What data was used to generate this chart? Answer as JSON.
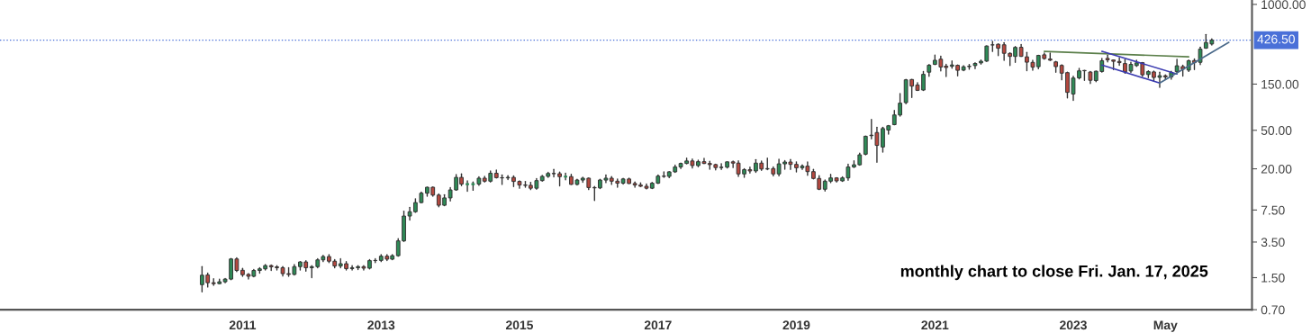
{
  "chart_data": {
    "type": "candlestick",
    "log": true,
    "grid": false,
    "legend": false,
    "xlim": [
      "2007-07",
      "2025-08"
    ],
    "ylim": [
      0.7,
      1110
    ],
    "xticks": [
      {
        "value": "2011-01",
        "label": "2011"
      },
      {
        "value": "2013-01",
        "label": "2013"
      },
      {
        "value": "2015-01",
        "label": "2015"
      },
      {
        "value": "2017-01",
        "label": "2017"
      },
      {
        "value": "2019-01",
        "label": "2019"
      },
      {
        "value": "2021-01",
        "label": "2021"
      },
      {
        "value": "2023-01",
        "label": "2023"
      },
      {
        "value": "2024-05",
        "label": "May"
      }
    ],
    "yticks": [
      {
        "value": 0.7,
        "label": "0.70"
      },
      {
        "value": 1.5,
        "label": "1.50"
      },
      {
        "value": 3.5,
        "label": "3.50"
      },
      {
        "value": 7.5,
        "label": "7.50"
      },
      {
        "value": 20,
        "label": "20.00"
      },
      {
        "value": 50,
        "label": "50.00"
      },
      {
        "value": 150,
        "label": "150.00"
      },
      {
        "value": 1000,
        "label": "1000.00"
      }
    ],
    "colors": [
      "#2e8b57",
      "#b5483f",
      "#b5483f",
      "#2e8b57",
      "#2e8b57",
      "#2e8b57",
      "#b5483f",
      "#b5483f",
      "#b5483f",
      "#2e8b57",
      "#2e8b57",
      "#2e8b57",
      "#b5483f",
      "#b5483f",
      "#b5483f",
      "#b5483f",
      "#2e8b57",
      "#2e8b57",
      "#b5483f",
      "#2e8b57",
      "#2e8b57",
      "#2e8b57",
      "#b5483f",
      "#b5483f",
      "#2e8b57",
      "#b5483f",
      "#2e8b57",
      "#2e8b57",
      "#b5483f",
      "#2e8b57",
      "#2e8b57",
      "#2e8b57",
      "#b5483f",
      "#2e8b57",
      "#2e8b57",
      "#2e8b57",
      "#2e8b57",
      "#2e8b57",
      "#2e8b57",
      "#2e8b57",
      "#b5483f",
      "#b5483f",
      "#2e8b57",
      "#2e8b57",
      "#2e8b57",
      "#b5483f",
      "#2e8b57",
      "#2e8b57",
      "#2e8b57",
      "#b5483f",
      "#2e8b57",
      "#b5483f",
      "#b5483f",
      "#2e8b57",
      "#b5483f",
      "#b5483f",
      "#b5483f",
      "#b5483f",
      "#2e8b57",
      "#2e8b57",
      "#2e8b57",
      "#b5483f",
      "#b5483f",
      "#2e8b57",
      "#b5483f",
      "#2e8b57",
      "#2e8b57",
      "#b5483f",
      "#b5483f",
      "#2e8b57",
      "#2e8b57",
      "#b5483f",
      "#b5483f",
      "#2e8b57",
      "#b5483f",
      "#b5483f",
      "#b5483f",
      "#b5483f",
      "#2e8b57",
      "#2e8b57",
      "#b5483f",
      "#2e8b57",
      "#2e8b57",
      "#2e8b57",
      "#2e8b57",
      "#b5483f",
      "#2e8b57",
      "#b5483f",
      "#b5483f",
      "#b5483f",
      "#2e8b57",
      "#2e8b57",
      "#b5483f",
      "#b5483f",
      "#2e8b57",
      "#b5483f",
      "#2e8b57",
      "#b5483f",
      "#2e8b57",
      "#b5483f",
      "#2e8b57",
      "#2e8b57",
      "#b5483f",
      "#b5483f",
      "#2e8b57",
      "#b5483f",
      "#b5483f",
      "#b5483f",
      "#2e8b57",
      "#2e8b57",
      "#b5483f",
      "#2e8b57",
      "#2e8b57",
      "#2e8b57",
      "#2e8b57",
      "#2e8b57",
      "#2e8b57",
      "#b5483f",
      "#2e8b57",
      "#2e8b57",
      "#2e8b57",
      "#2e8b57",
      "#2e8b57",
      "#b5483f",
      "#b5483f",
      "#2e8b57",
      "#2e8b57",
      "#2e8b57",
      "#b5483f",
      "#b5483f",
      "#2e8b57",
      "#b5483f",
      "#2e8b57",
      "#2e8b57",
      "#2e8b57",
      "#2e8b57",
      "#2e8b57",
      "#b5483f",
      "#b5483f",
      "#b5483f",
      "#b5483f",
      "#2e8b57",
      "#b5483f",
      "#b5483f",
      "#b5483f",
      "#2e8b57",
      "#b5483f",
      "#b5483f",
      "#b5483f",
      "#b5483f",
      "#b5483f",
      "#2e8b57",
      "#2e8b57",
      "#2e8b57",
      "#b5483f",
      "#2e8b57",
      "#2e8b57",
      "#b5483f",
      "#b5483f",
      "#b5483f",
      "#b5483f",
      "#2e8b57",
      "#2e8b57",
      "#b5483f",
      "#2e8b57",
      "#b5483f",
      "#2e8b57",
      "#b5483f",
      "#2e8b57",
      "#2e8b57",
      "#b5483f",
      "#2e8b57",
      "#b5483f",
      "#2e8b57",
      "#2e8b57",
      "#2e8b57"
    ],
    "x": [
      "2010-06",
      "2010-07",
      "2010-08",
      "2010-09",
      "2010-10",
      "2010-11",
      "2010-12",
      "2011-01",
      "2011-02",
      "2011-03",
      "2011-04",
      "2011-05",
      "2011-06",
      "2011-07",
      "2011-08",
      "2011-09",
      "2011-10",
      "2011-11",
      "2011-12",
      "2012-01",
      "2012-02",
      "2012-03",
      "2012-04",
      "2012-05",
      "2012-06",
      "2012-07",
      "2012-08",
      "2012-09",
      "2012-10",
      "2012-11",
      "2012-12",
      "2013-01",
      "2013-02",
      "2013-03",
      "2013-04",
      "2013-05",
      "2013-06",
      "2013-07",
      "2013-08",
      "2013-09",
      "2013-10",
      "2013-11",
      "2013-12",
      "2014-01",
      "2014-02",
      "2014-03",
      "2014-04",
      "2014-05",
      "2014-06",
      "2014-07",
      "2014-08",
      "2014-09",
      "2014-10",
      "2014-11",
      "2014-12",
      "2015-01",
      "2015-02",
      "2015-03",
      "2015-04",
      "2015-05",
      "2015-06",
      "2015-07",
      "2015-08",
      "2015-09",
      "2015-10",
      "2015-11",
      "2015-12",
      "2016-01",
      "2016-02",
      "2016-03",
      "2016-04",
      "2016-05",
      "2016-06",
      "2016-07",
      "2016-08",
      "2016-09",
      "2016-10",
      "2016-11",
      "2016-12",
      "2017-01",
      "2017-02",
      "2017-03",
      "2017-04",
      "2017-05",
      "2017-06",
      "2017-07",
      "2017-08",
      "2017-09",
      "2017-10",
      "2017-11",
      "2017-12",
      "2018-01",
      "2018-02",
      "2018-03",
      "2018-04",
      "2018-05",
      "2018-06",
      "2018-07",
      "2018-08",
      "2018-09",
      "2018-10",
      "2018-11",
      "2018-12",
      "2019-01",
      "2019-02",
      "2019-03",
      "2019-04",
      "2019-05",
      "2019-06",
      "2019-07",
      "2019-08",
      "2019-09",
      "2019-10",
      "2019-11",
      "2019-12",
      "2020-01",
      "2020-02",
      "2020-03",
      "2020-04",
      "2020-05",
      "2020-06",
      "2020-07",
      "2020-08",
      "2020-09",
      "2020-10",
      "2020-11",
      "2020-12",
      "2021-01",
      "2021-02",
      "2021-03",
      "2021-04",
      "2021-05",
      "2021-06",
      "2021-07",
      "2021-08",
      "2021-09",
      "2021-10",
      "2021-11",
      "2021-12",
      "2022-01",
      "2022-02",
      "2022-03",
      "2022-04",
      "2022-05",
      "2022-06",
      "2022-07",
      "2022-08",
      "2022-09",
      "2022-10",
      "2022-11",
      "2022-12",
      "2023-01",
      "2023-02",
      "2023-03",
      "2023-04",
      "2023-05",
      "2023-06",
      "2023-07",
      "2023-08",
      "2023-09",
      "2023-10",
      "2023-11",
      "2023-12",
      "2024-01",
      "2024-02",
      "2024-03",
      "2024-04",
      "2024-05",
      "2024-06",
      "2024-07",
      "2024-08",
      "2024-09",
      "2024-10",
      "2024-11",
      "2024-12",
      "2025-01"
    ],
    "ohlc": [
      [
        1.27,
        1.95,
        1.07,
        1.59
      ],
      [
        1.6,
        1.67,
        1.2,
        1.33
      ],
      [
        1.33,
        1.46,
        1.25,
        1.3
      ],
      [
        1.3,
        1.45,
        1.3,
        1.36
      ],
      [
        1.36,
        1.47,
        1.33,
        1.45
      ],
      [
        1.45,
        2.37,
        1.43,
        2.34
      ],
      [
        2.34,
        2.4,
        1.73,
        1.78
      ],
      [
        1.79,
        1.87,
        1.55,
        1.61
      ],
      [
        1.62,
        1.65,
        1.45,
        1.55
      ],
      [
        1.55,
        1.82,
        1.53,
        1.78
      ],
      [
        1.78,
        1.9,
        1.67,
        1.85
      ],
      [
        1.85,
        2.05,
        1.8,
        2.0
      ],
      [
        2.0,
        2.03,
        1.78,
        1.94
      ],
      [
        1.94,
        2.0,
        1.8,
        1.9
      ],
      [
        1.9,
        1.95,
        1.56,
        1.65
      ],
      [
        1.65,
        1.9,
        1.55,
        1.62
      ],
      [
        1.62,
        2.05,
        1.6,
        1.95
      ],
      [
        1.95,
        2.2,
        1.8,
        2.18
      ],
      [
        2.18,
        2.25,
        1.75,
        1.9
      ],
      [
        1.9,
        2.0,
        1.5,
        1.95
      ],
      [
        1.95,
        2.35,
        1.9,
        2.29
      ],
      [
        2.29,
        2.55,
        2.2,
        2.48
      ],
      [
        2.48,
        2.6,
        2.15,
        2.22
      ],
      [
        2.22,
        2.3,
        1.9,
        1.98
      ],
      [
        1.98,
        2.35,
        1.9,
        2.09
      ],
      [
        2.09,
        2.2,
        1.8,
        1.86
      ],
      [
        1.86,
        2.0,
        1.8,
        1.9
      ],
      [
        1.9,
        2.0,
        1.82,
        1.95
      ],
      [
        1.95,
        2.0,
        1.8,
        1.88
      ],
      [
        1.88,
        2.3,
        1.85,
        2.25
      ],
      [
        2.25,
        2.35,
        2.15,
        2.26
      ],
      [
        2.26,
        2.6,
        2.2,
        2.5
      ],
      [
        2.5,
        2.6,
        2.25,
        2.33
      ],
      [
        2.33,
        2.6,
        2.3,
        2.53
      ],
      [
        2.53,
        3.8,
        2.5,
        3.6
      ],
      [
        3.6,
        7.3,
        3.55,
        6.5
      ],
      [
        6.5,
        8.0,
        5.9,
        7.2
      ],
      [
        7.2,
        9.8,
        7.1,
        8.95
      ],
      [
        8.95,
        11.5,
        8.9,
        11.2
      ],
      [
        11.2,
        12.9,
        10.4,
        12.9
      ],
      [
        12.9,
        13.0,
        10.4,
        10.7
      ],
      [
        10.7,
        11.0,
        8.1,
        8.4
      ],
      [
        8.4,
        10.8,
        8.3,
        10.0
      ],
      [
        10.0,
        12.8,
        9.3,
        12.1
      ],
      [
        12.1,
        17.4,
        12.0,
        16.3
      ],
      [
        16.3,
        17.7,
        13.4,
        13.9
      ],
      [
        13.9,
        15.0,
        11.7,
        13.9
      ],
      [
        13.9,
        14.6,
        12.0,
        13.9
      ],
      [
        13.9,
        16.5,
        13.5,
        16.0
      ],
      [
        16.0,
        16.7,
        14.6,
        14.9
      ],
      [
        14.9,
        19.0,
        14.6,
        18.0
      ],
      [
        18.0,
        19.4,
        16.1,
        16.2
      ],
      [
        16.2,
        17.3,
        13.8,
        16.1
      ],
      [
        16.1,
        17.0,
        15.5,
        16.3
      ],
      [
        16.3,
        16.9,
        13.1,
        14.8
      ],
      [
        14.8,
        15.0,
        12.6,
        13.6
      ],
      [
        13.6,
        14.8,
        12.9,
        13.5
      ],
      [
        13.5,
        14.5,
        12.2,
        12.6
      ],
      [
        12.6,
        15.8,
        12.3,
        15.1
      ],
      [
        15.1,
        17.1,
        14.9,
        16.7
      ],
      [
        16.7,
        18.4,
        16.3,
        17.9
      ],
      [
        17.9,
        19.7,
        16.5,
        17.8
      ],
      [
        17.8,
        18.5,
        13.3,
        16.6
      ],
      [
        16.6,
        18.0,
        15.4,
        16.6
      ],
      [
        16.6,
        17.5,
        13.8,
        13.8
      ],
      [
        13.8,
        15.6,
        13.6,
        15.3
      ],
      [
        15.3,
        16.4,
        14.5,
        16.0
      ],
      [
        16.0,
        16.1,
        12.2,
        12.8
      ],
      [
        12.8,
        13.1,
        9.4,
        12.7
      ],
      [
        12.7,
        15.6,
        12.5,
        15.3
      ],
      [
        15.3,
        17.3,
        14.4,
        16.0
      ],
      [
        16.0,
        16.6,
        13.8,
        14.9
      ],
      [
        14.9,
        15.7,
        12.9,
        14.2
      ],
      [
        14.2,
        15.9,
        13.9,
        15.7
      ],
      [
        15.7,
        16.0,
        14.1,
        14.1
      ],
      [
        14.1,
        14.6,
        12.9,
        13.6
      ],
      [
        13.6,
        14.3,
        13.1,
        13.2
      ],
      [
        13.2,
        13.9,
        12.4,
        12.6
      ],
      [
        12.6,
        14.5,
        12.5,
        14.2
      ],
      [
        14.2,
        17.3,
        14.1,
        16.8
      ],
      [
        16.8,
        18.6,
        16.3,
        16.7
      ],
      [
        16.7,
        18.7,
        16.2,
        18.6
      ],
      [
        18.6,
        21.8,
        18.4,
        20.9
      ],
      [
        20.9,
        22.9,
        20.1,
        22.7
      ],
      [
        22.7,
        25.8,
        22.5,
        24.1
      ],
      [
        24.1,
        25.2,
        20.4,
        21.6
      ],
      [
        21.6,
        24.6,
        21.0,
        23.7
      ],
      [
        23.7,
        25.6,
        22.6,
        22.7
      ],
      [
        22.7,
        23.9,
        19.8,
        22.1
      ],
      [
        22.1,
        22.3,
        19.5,
        20.6
      ],
      [
        20.6,
        22.6,
        19.7,
        20.8
      ],
      [
        20.8,
        23.6,
        20.4,
        23.6
      ],
      [
        23.6,
        24.0,
        20.6,
        22.9
      ],
      [
        22.9,
        24.2,
        16.7,
        17.7
      ],
      [
        17.7,
        20.0,
        16.3,
        19.6
      ],
      [
        19.6,
        20.8,
        18.1,
        19.0
      ],
      [
        19.0,
        24.9,
        18.4,
        22.9
      ],
      [
        22.9,
        24.0,
        19.3,
        19.9
      ],
      [
        19.9,
        25.8,
        19.6,
        20.1
      ],
      [
        20.1,
        20.9,
        16.9,
        17.7
      ],
      [
        17.7,
        25.1,
        16.9,
        22.5
      ],
      [
        22.5,
        24.3,
        19.8,
        23.5
      ],
      [
        23.5,
        25.0,
        19.7,
        22.2
      ],
      [
        22.2,
        23.6,
        18.6,
        20.5
      ],
      [
        20.5,
        21.9,
        19.7,
        21.3
      ],
      [
        21.3,
        23.5,
        17.1,
        18.7
      ],
      [
        18.7,
        19.7,
        15.7,
        15.9
      ],
      [
        15.9,
        17.0,
        12.2,
        12.3
      ],
      [
        12.3,
        15.3,
        11.8,
        14.9
      ],
      [
        14.9,
        17.5,
        14.4,
        16.1
      ],
      [
        16.1,
        16.2,
        14.6,
        15.0
      ],
      [
        15.0,
        16.5,
        14.8,
        16.1
      ],
      [
        16.1,
        22.3,
        15.2,
        20.9
      ],
      [
        20.9,
        24.2,
        20.6,
        22.0
      ],
      [
        22.0,
        29.0,
        21.8,
        27.9
      ],
      [
        28.3,
        43.5,
        27.9,
        43.4
      ],
      [
        44.0,
        64.6,
        40.8,
        44.5
      ],
      [
        47.4,
        53.8,
        23.4,
        34.9
      ],
      [
        33.6,
        53.8,
        29.8,
        52.1
      ],
      [
        50.3,
        56.0,
        45.6,
        55.7
      ],
      [
        57.2,
        80.0,
        57.0,
        72.0
      ],
      [
        72.0,
        119.7,
        70.1,
        95.4
      ],
      [
        96.6,
        167.5,
        94.0,
        166.1
      ],
      [
        167.4,
        167.5,
        109.0,
        143.0
      ],
      [
        146.9,
        155.3,
        129.0,
        129.3
      ],
      [
        130.3,
        202.5,
        129.0,
        189.2
      ],
      [
        199.2,
        239.6,
        180.3,
        235.2
      ],
      [
        239.8,
        300.1,
        239.1,
        264.5
      ],
      [
        271.4,
        291.2,
        205.7,
        225.2
      ],
      [
        230.0,
        240.2,
        179.8,
        222.6
      ],
      [
        229.5,
        260.3,
        218.8,
        236.5
      ],
      [
        234.6,
        236.7,
        182.3,
        208.4
      ],
      [
        209.3,
        232.8,
        206.9,
        226.6
      ],
      [
        227.6,
        239.7,
        213.9,
        229.1
      ],
      [
        233.3,
        249.9,
        216.3,
        245.2
      ],
      [
        248.7,
        266.3,
        241.7,
        258.5
      ],
      [
        259.5,
        372.2,
        257.0,
        371.3
      ],
      [
        381.7,
        414.5,
        326.6,
        381.6
      ],
      [
        386.9,
        390.9,
        295.4,
        352.3
      ],
      [
        382.6,
        402.7,
        264.0,
        312.2
      ],
      [
        311.7,
        315.9,
        233.3,
        290.1
      ],
      [
        289.9,
        366.0,
        252.0,
        359.2
      ],
      [
        360.4,
        384.3,
        290.0,
        290.3
      ],
      [
        286.9,
        318.5,
        206.9,
        252.8
      ],
      [
        251.7,
        264.2,
        208.7,
        224.5
      ],
      [
        227.0,
        298.3,
        216.2,
        297.1
      ],
      [
        301.3,
        314.7,
        271.8,
        275.6
      ],
      [
        272.6,
        313.8,
        262.5,
        265.3
      ],
      [
        254.5,
        257.5,
        198.6,
        227.5
      ],
      [
        234.1,
        237.4,
        166.2,
        194.7
      ],
      [
        197.1,
        198.9,
        108.2,
        123.2
      ],
      [
        118.5,
        180.7,
        101.8,
        173.2
      ],
      [
        173.9,
        217.7,
        169.9,
        205.7
      ],
      [
        206.2,
        207.8,
        163.9,
        207.5
      ],
      [
        199.9,
        202.7,
        152.4,
        164.3
      ],
      [
        163.2,
        204.5,
        158.8,
        203.9
      ],
      [
        202.6,
        276.9,
        199.4,
        261.8
      ],
      [
        276.5,
        299.3,
        254.1,
        267.4
      ],
      [
        266.3,
        266.5,
        212.4,
        258.1
      ],
      [
        257.3,
        278.9,
        234.6,
        250.2
      ],
      [
        244.8,
        268.9,
        194.1,
        200.8
      ],
      [
        205.0,
        252.8,
        197.9,
        240.1
      ],
      [
        233.1,
        265.1,
        228.2,
        248.5
      ],
      [
        250.1,
        251.3,
        180.1,
        187.3
      ],
      [
        188.5,
        205.6,
        175.0,
        201.9
      ],
      [
        200.5,
        204.5,
        160.5,
        175.8
      ],
      [
        176.2,
        198.9,
        138.8,
        183.3
      ],
      [
        182.9,
        187.1,
        167.6,
        178.1
      ],
      [
        178.1,
        203.2,
        168.5,
        197.9
      ],
      [
        201.8,
        271.0,
        196.2,
        232.1
      ],
      [
        227.7,
        234.7,
        182.0,
        214.1
      ],
      [
        209.3,
        265.8,
        202.6,
        261.6
      ],
      [
        262.7,
        273.5,
        212.1,
        249.9
      ],
      [
        252.0,
        361.9,
        238.9,
        345.2
      ],
      [
        352.4,
        488.5,
        352.0,
        403.8
      ],
      [
        390.1,
        439.7,
        380.3,
        426.5
      ]
    ],
    "series": [
      {
        "type": "line",
        "color": "#5b7f4a",
        "x": [
          "2022-08",
          "2024-09"
        ],
        "values": [
          327,
          287
        ]
      },
      {
        "type": "line",
        "color": "#3b3bb0",
        "x": [
          "2023-06",
          "2024-07"
        ],
        "values": [
          327,
          191
        ]
      },
      {
        "type": "line",
        "color": "#3b3bb0",
        "x": [
          "2023-06",
          "2024-04"
        ],
        "values": [
          236,
          154
        ]
      },
      {
        "type": "line",
        "color": "#4a6a8a",
        "x": [
          "2024-04",
          "2025-04"
        ],
        "values": [
          154,
          405
        ]
      }
    ],
    "ref_lines": [
      {
        "axis": "y",
        "value": 426.5,
        "label": "426.50",
        "color": "#4a70d8",
        "line_style": "dotted"
      }
    ],
    "annotations": [
      "monthly chart to close Fri. Jan. 17, 2025"
    ]
  }
}
